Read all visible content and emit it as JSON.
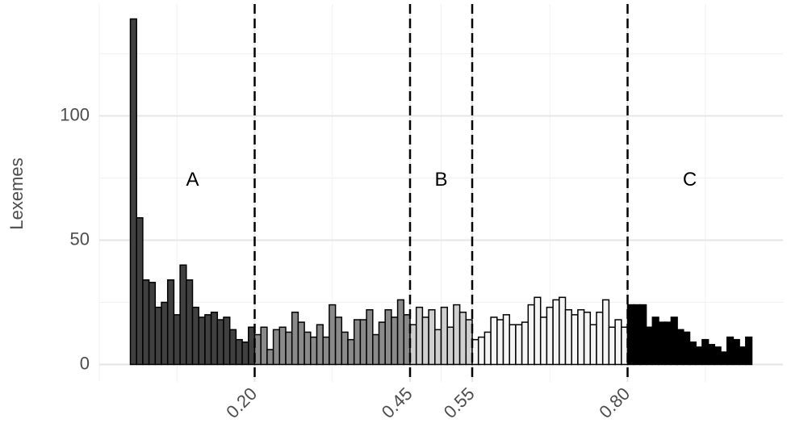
{
  "chart_data": {
    "type": "histogram",
    "y_label": "Lexemes",
    "bins": [
      0,
      0.01,
      0.02,
      0.03,
      0.04,
      0.05,
      0.06,
      0.07,
      0.08,
      0.09,
      0.1,
      0.11,
      0.12,
      0.13,
      0.14,
      0.15,
      0.16,
      0.17,
      0.18,
      0.19,
      0.2,
      0.21,
      0.22,
      0.23,
      0.24,
      0.25,
      0.26,
      0.27,
      0.28,
      0.29,
      0.3,
      0.31,
      0.32,
      0.33,
      0.34,
      0.35,
      0.36,
      0.37,
      0.38,
      0.39,
      0.4,
      0.41,
      0.42,
      0.43,
      0.44,
      0.45,
      0.46,
      0.47,
      0.48,
      0.49,
      0.5,
      0.51,
      0.52,
      0.53,
      0.54,
      0.55,
      0.56,
      0.57,
      0.58,
      0.59,
      0.6,
      0.61,
      0.62,
      0.63,
      0.64,
      0.65,
      0.66,
      0.67,
      0.68,
      0.69,
      0.7,
      0.71,
      0.72,
      0.73,
      0.74,
      0.75,
      0.76,
      0.77,
      0.78,
      0.79,
      0.8,
      0.81,
      0.82,
      0.83,
      0.84,
      0.85,
      0.86,
      0.87,
      0.88,
      0.89,
      0.9,
      0.91,
      0.92,
      0.93,
      0.94,
      0.95,
      0.96,
      0.97,
      0.98,
      0.99,
      1
    ],
    "counts": [
      139,
      59,
      34,
      33,
      23,
      25,
      34,
      20,
      40,
      34,
      23,
      19,
      20,
      21,
      18,
      19,
      14,
      10,
      9,
      15,
      12,
      15,
      6,
      14,
      15,
      13,
      21,
      17,
      13,
      11,
      16,
      11,
      24,
      19,
      13,
      10,
      18,
      18,
      22,
      12,
      17,
      22,
      19,
      26,
      20,
      16,
      23,
      19,
      22,
      14,
      23,
      15,
      24,
      21,
      18,
      10,
      11,
      13,
      19,
      18,
      20,
      16,
      16,
      17,
      24,
      27,
      19,
      23,
      26,
      27,
      22,
      20,
      22,
      21,
      16,
      21,
      26,
      15,
      18,
      15,
      24,
      24,
      24,
      15,
      19,
      17,
      17,
      19,
      14,
      13,
      9,
      7,
      10,
      8,
      7,
      5,
      11,
      10,
      7,
      11
    ],
    "region_colors": [
      "#404040",
      "#8a8a8a",
      "#cfcfcf",
      "#f5f5f5"
    ],
    "vlines": [
      0.2,
      0.45,
      0.55,
      0.8
    ],
    "annotations": [
      {
        "text": "A",
        "x": 0.1,
        "y": 74
      },
      {
        "text": "B",
        "x": 0.5,
        "y": 74
      },
      {
        "text": "C",
        "x": 0.9,
        "y": 74
      }
    ],
    "xlim": [
      -0.05,
      1.05
    ],
    "ylim": [
      -7,
      145
    ],
    "xticks": [
      {
        "value": 0.2,
        "label": "0.20"
      },
      0.45,
      0.55,
      {
        "value": 0.8,
        "label": "0.80"
      }
    ],
    "yticks": [
      0,
      50,
      100
    ],
    "x_minor_grid": [
      -0.05,
      0.075,
      0.325,
      0.5,
      0.675,
      0.925
    ],
    "y_minor_grid": [
      25,
      75,
      125
    ],
    "grid": true
  }
}
